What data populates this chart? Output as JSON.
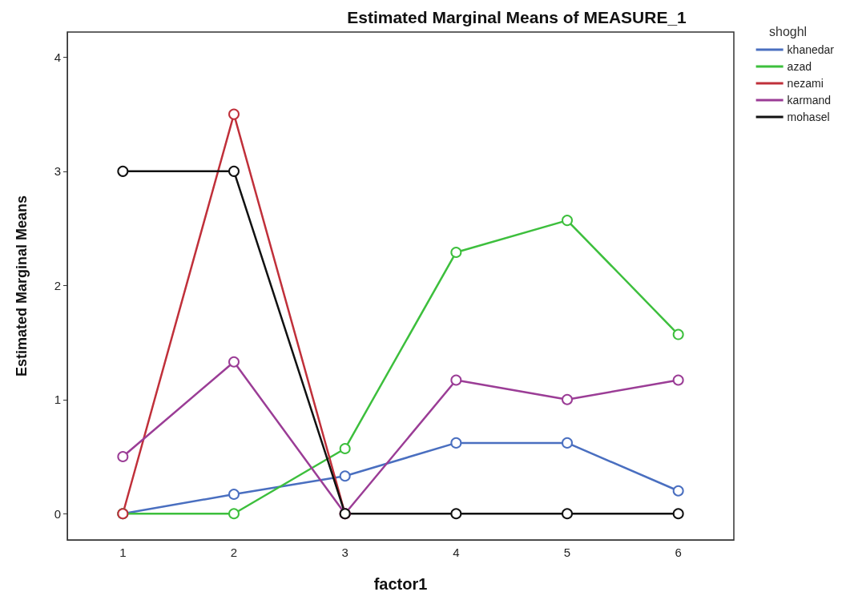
{
  "chart_data": {
    "type": "line",
    "title": "Estimated Marginal Means of MEASURE_1",
    "xlabel": "factor1",
    "ylabel": "Estimated Marginal Means",
    "legend_title": "shoghl",
    "categories": [
      "1",
      "2",
      "3",
      "4",
      "5",
      "6"
    ],
    "series": [
      {
        "name": "khanedar",
        "color": "#4a6fc0",
        "values": [
          0,
          0.17,
          0.33,
          0.62,
          0.62,
          0.2
        ]
      },
      {
        "name": "azad",
        "color": "#3dbf3d",
        "values": [
          0,
          0,
          0.57,
          2.29,
          2.57,
          1.57
        ]
      },
      {
        "name": "nezami",
        "color": "#c0303a",
        "values": [
          0,
          3.5,
          0,
          null,
          null,
          null
        ]
      },
      {
        "name": "karmand",
        "color": "#9b3d96",
        "values": [
          0.5,
          1.33,
          0,
          1.17,
          1,
          1.17
        ]
      },
      {
        "name": "mohasel",
        "color": "#111111",
        "values": [
          3,
          3,
          0,
          0,
          0,
          0
        ]
      }
    ],
    "ylim": [
      -0.23,
      4.22
    ],
    "yticks": [
      0,
      1,
      2,
      3,
      4
    ],
    "grid": false,
    "legend": "top right",
    "marker": "circle",
    "line_style": "solid"
  }
}
